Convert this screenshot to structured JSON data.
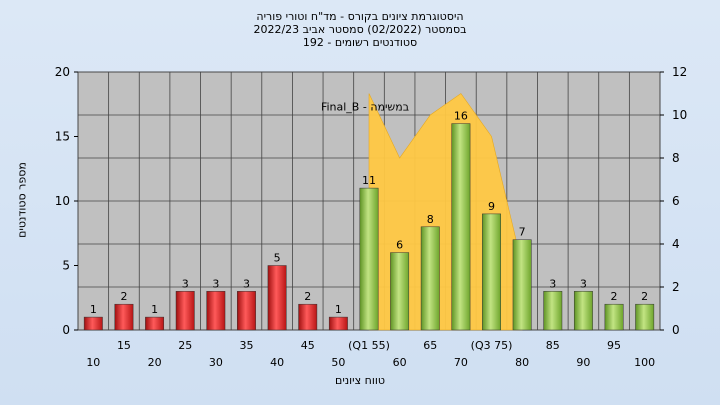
{
  "chart_data": {
    "type": "bar",
    "title_lines": [
      "היסטוגרמת ציונים בקורס - מד\"ח וטורי פוריה",
      "בסמסטר  (02/2022)  סמסטר אביב 2022/23",
      "סטודנטים רשומים - 192"
    ],
    "ylabel": "מספר סטודנטים",
    "xlabel": "טווח ציונים",
    "ylim": [
      0,
      20
    ],
    "y_ticks": [
      "0",
      "5",
      "10",
      "15",
      "20"
    ],
    "y2lim": [
      0,
      12
    ],
    "y2_ticks": [
      "0",
      "2",
      "4",
      "6",
      "8",
      "10",
      "12"
    ],
    "grid": true,
    "x_tick_labels": [
      "10",
      "15",
      "20",
      "25",
      "30",
      "35",
      "40",
      "45",
      "50",
      "(Q1 55)",
      "60",
      "65",
      "70",
      "(Q3 75)",
      "80",
      "85",
      "90",
      "95",
      "100"
    ],
    "categories": [
      "10",
      "15",
      "20",
      "25",
      "30",
      "35",
      "40",
      "45",
      "50",
      "55",
      "60",
      "65",
      "70",
      "75",
      "80",
      "85",
      "90",
      "95",
      "100"
    ],
    "values": [
      1,
      2,
      1,
      3,
      3,
      3,
      5,
      2,
      1,
      11,
      6,
      8,
      16,
      9,
      7,
      3,
      3,
      2,
      2
    ],
    "bar_colors": [
      "#e02828",
      "#e02828",
      "#e02828",
      "#e02828",
      "#e02828",
      "#e02828",
      "#e02828",
      "#e02828",
      "#e02828",
      "#86bb3c",
      "#86bb3c",
      "#86bb3c",
      "#86bb3c",
      "#86bb3c",
      "#86bb3c",
      "#86bb3c",
      "#86bb3c",
      "#86bb3c",
      "#86bb3c"
    ],
    "area_series": {
      "name": "Final_B - במשימה",
      "axis": "right",
      "x": [
        "55",
        "60",
        "65",
        "70",
        "75",
        "80"
      ],
      "values": [
        11,
        8,
        10,
        11,
        9,
        3
      ],
      "color": "#ffc843"
    },
    "colors": {
      "plot_bg": "#c0c0c0",
      "grid": "#444444",
      "fail_bar": "#e02828",
      "pass_bar": "#86bb3c",
      "area": "#ffc843"
    }
  }
}
